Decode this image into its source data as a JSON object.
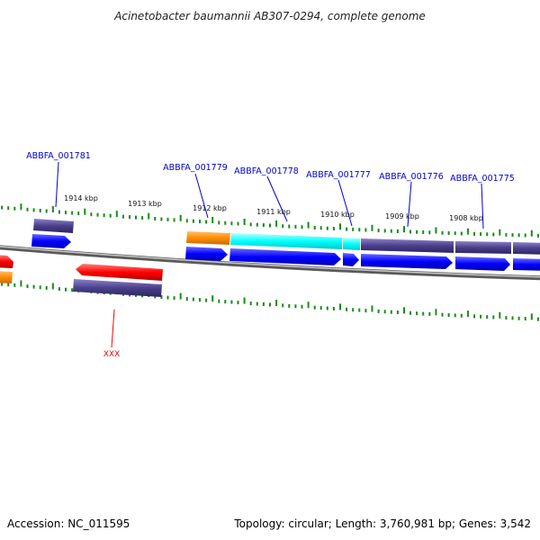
{
  "title": "Acinetobacter baumannii AB307-0294, complete genome",
  "footer": {
    "accession": "Accession: NC_011595",
    "summary": "Topology: circular; Length: 3,760,981 bp; Genes: 3,542"
  },
  "ticks": [
    {
      "label": "1914 kbp"
    },
    {
      "label": "1913 kbp"
    },
    {
      "label": "1912 kbp"
    },
    {
      "label": "1911 kbp"
    },
    {
      "label": "1910 kbp"
    },
    {
      "label": "1909 kbp"
    },
    {
      "label": "1908 kbp"
    }
  ],
  "genes": [
    {
      "locus": "ABBFA_001781"
    },
    {
      "locus": "ABBFA_001779"
    },
    {
      "locus": "ABBFA_001778"
    },
    {
      "locus": "ABBFA_001777"
    },
    {
      "locus": "ABBFA_001776"
    },
    {
      "locus": "ABBFA_001775"
    }
  ],
  "feature_label": "XXX",
  "colors": {
    "cds_forward": "#0000ff",
    "cds_reverse": "#ff0000",
    "gene": "#4a3f8a",
    "rna_cyan": "#00ffff",
    "orange": "#ff8c00",
    "tick": "#1a8a1a",
    "backbone": "#888888",
    "leader_blue": "#0000cc",
    "leader_red": "#ff0000"
  }
}
